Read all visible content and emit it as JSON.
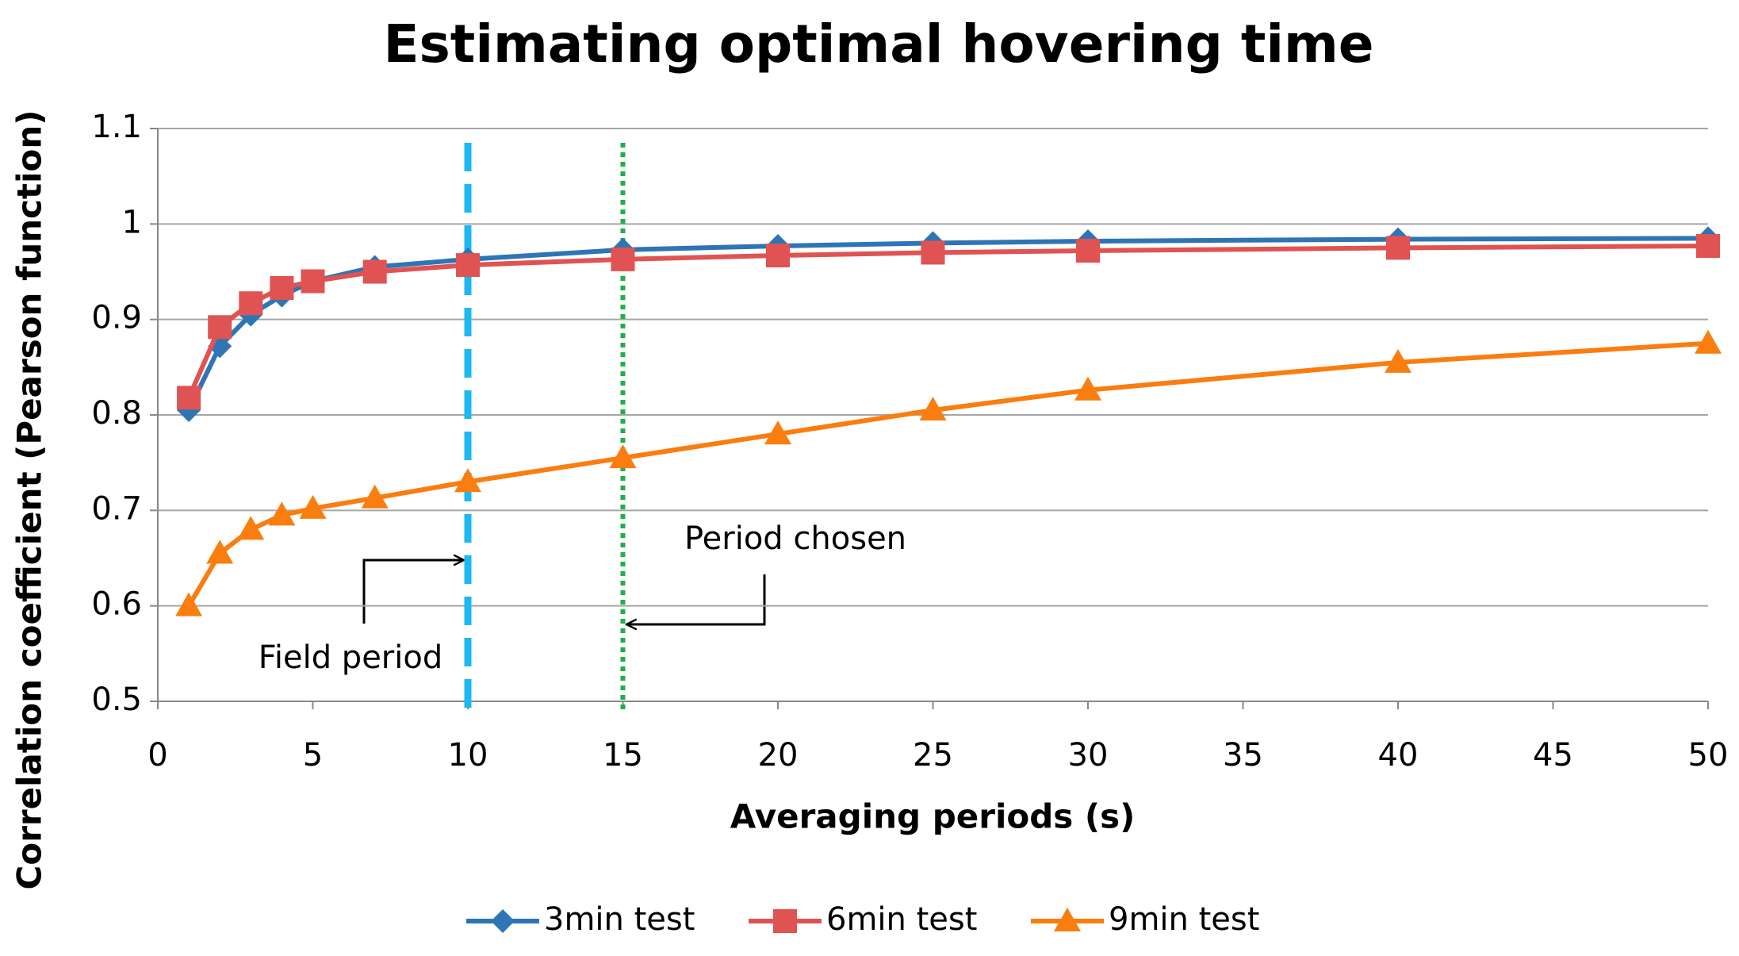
{
  "chart_data": {
    "type": "line",
    "title": "Estimating optimal hovering time",
    "x_label": "Averaging periods (s)",
    "y_label": "Correlation coefficient (Pearson function)",
    "x": [
      1,
      2,
      3,
      4,
      5,
      7,
      10,
      15,
      20,
      25,
      30,
      40,
      50
    ],
    "series": [
      {
        "name": "3min test",
        "color": "#2e75b6",
        "marker": "diamond",
        "values": [
          0.805,
          0.872,
          0.905,
          0.925,
          0.94,
          0.955,
          0.963,
          0.973,
          0.977,
          0.98,
          0.982,
          0.984,
          0.985
        ]
      },
      {
        "name": "6min test",
        "color": "#e05353",
        "marker": "square",
        "values": [
          0.818,
          0.892,
          0.917,
          0.933,
          0.94,
          0.95,
          0.957,
          0.963,
          0.967,
          0.97,
          0.972,
          0.975,
          0.977
        ]
      },
      {
        "name": "9min test",
        "color": "#fa7d0f",
        "marker": "triangle",
        "values": [
          0.6,
          0.655,
          0.68,
          0.695,
          0.702,
          0.713,
          0.73,
          0.755,
          0.78,
          0.805,
          0.826,
          0.855,
          0.875
        ]
      }
    ],
    "xlim": [
      0,
      50
    ],
    "xticks": [
      0,
      5,
      10,
      15,
      20,
      25,
      30,
      35,
      40,
      45,
      50
    ],
    "ylim": [
      0.5,
      1.1
    ],
    "yticks": [
      0.5,
      0.6,
      0.7,
      0.8,
      0.9,
      1,
      1.1
    ],
    "grid": true,
    "legend": "bottom",
    "reference_lines": [
      {
        "x": 10,
        "color": "#1cb8f0",
        "style": "dashed"
      },
      {
        "x": 15,
        "color": "#1fb04a",
        "style": "dotted"
      }
    ],
    "annotations": [
      "Field period",
      "Period chosen"
    ]
  }
}
